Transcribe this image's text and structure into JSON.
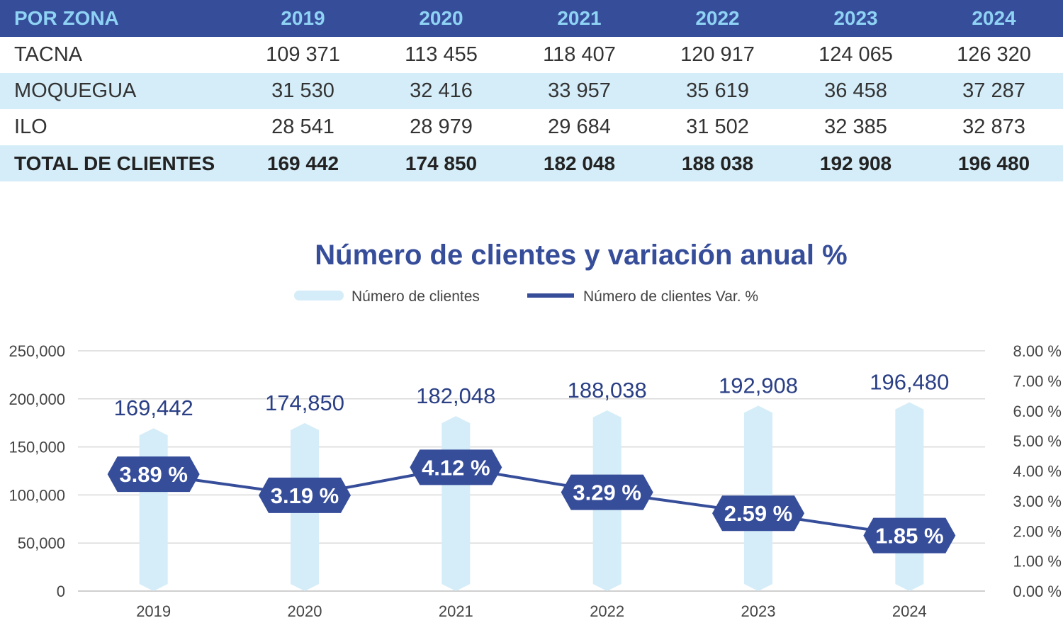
{
  "table": {
    "headers": [
      "POR ZONA",
      "2019",
      "2020",
      "2021",
      "2022",
      "2023",
      "2024"
    ],
    "rows": [
      {
        "zone": "TACNA",
        "values": [
          "109 371",
          "113 455",
          "118 407",
          "120 917",
          "124 065",
          "126 320"
        ]
      },
      {
        "zone": "MOQUEGUA",
        "values": [
          "31 530",
          "32 416",
          "33 957",
          "35 619",
          "36 458",
          "37 287"
        ]
      },
      {
        "zone": "ILO",
        "values": [
          "28 541",
          "28 979",
          "29 684",
          "31 502",
          "32 385",
          "32 873"
        ]
      }
    ],
    "total": {
      "zone": "TOTAL DE CLIENTES",
      "values": [
        "169 442",
        "174 850",
        "182 048",
        "188 038",
        "192 908",
        "196 480"
      ]
    }
  },
  "chart_data": {
    "type": "bar",
    "title": "Número de clientes y variación anual %",
    "categories": [
      "2019",
      "2020",
      "2021",
      "2022",
      "2023",
      "2024"
    ],
    "series": [
      {
        "name": "Número de clientes",
        "type": "bar",
        "axis": "left",
        "values": [
          169442,
          174850,
          182048,
          188038,
          192908,
          196480
        ],
        "labels": [
          "169,442",
          "174,850",
          "182,048",
          "188,038",
          "192,908",
          "196,480"
        ],
        "color": "#d5edf8"
      },
      {
        "name": "Número de clientes Var. %",
        "type": "line",
        "axis": "right",
        "values": [
          3.89,
          3.19,
          4.12,
          3.29,
          2.59,
          1.85
        ],
        "labels": [
          "3.89 %",
          "3.19 %",
          "4.12 %",
          "3.29 %",
          "2.59 %",
          "1.85 %"
        ],
        "color": "#364d9a"
      }
    ],
    "y_left": {
      "ticks": [
        0,
        50000,
        100000,
        150000,
        200000,
        250000
      ],
      "tick_labels": [
        "0",
        "50,000",
        "100,000",
        "150,000",
        "200,000",
        "250,000"
      ],
      "ylim": [
        0,
        250000
      ]
    },
    "y_right": {
      "ticks": [
        0,
        1,
        2,
        3,
        4,
        5,
        6,
        7,
        8
      ],
      "tick_labels": [
        "0.00 %",
        "1.00 %",
        "2.00 %",
        "3.00 %",
        "4.00 %",
        "5.00 %",
        "6.00 %",
        "7.00 %",
        "8.00 %"
      ],
      "ylim": [
        0,
        8
      ]
    },
    "grid": true,
    "legend_position": "top"
  }
}
